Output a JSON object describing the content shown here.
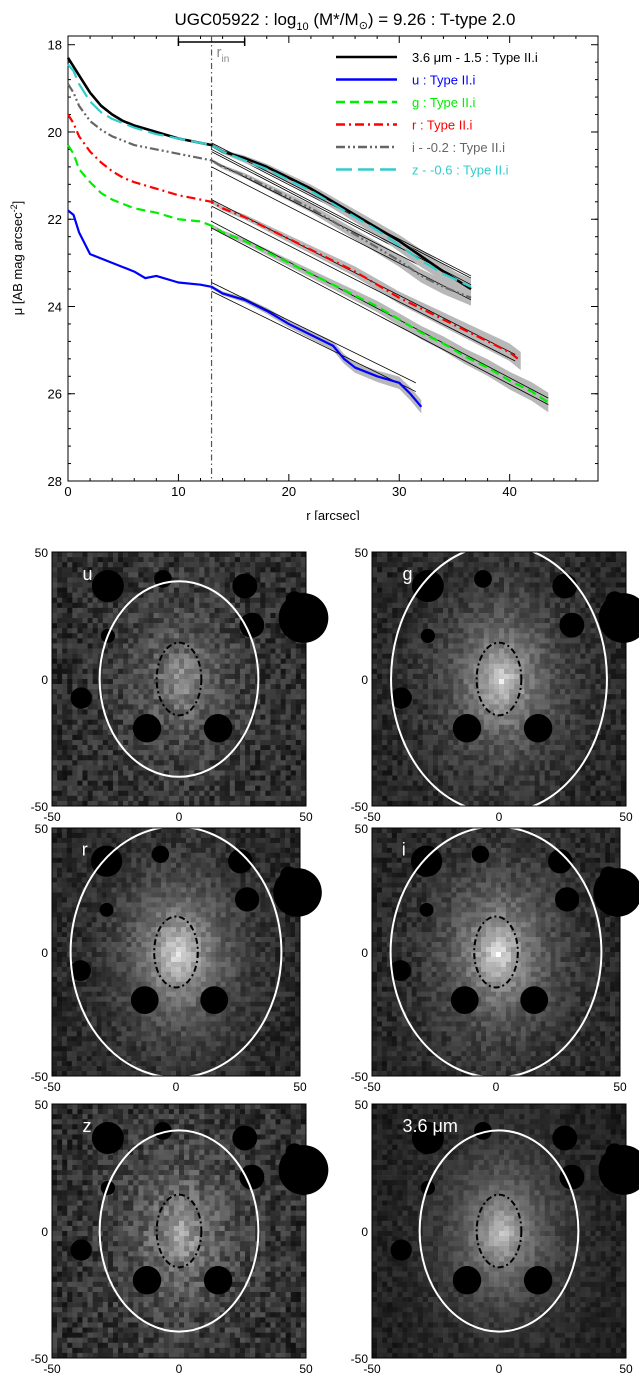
{
  "chart_data": [
    {
      "type": "line",
      "title": "UGC05922 : log₁₀ (M*/M☉) = 9.26 : T-type 2.0",
      "title_parts": [
        "UGC05922 : log",
        "10",
        " (M*/M",
        "⊙",
        ") = 9.26 : T-type 2.0"
      ],
      "xlabel": "r [arcsec]",
      "ylabel": "μ [AB mag arcsec⁻²]",
      "ylabel_parts": [
        "μ [AB mag arcsec",
        "-2",
        "]"
      ],
      "xlim": [
        0,
        48
      ],
      "ylim": [
        28,
        17.8
      ],
      "y_inverted": true,
      "xticks": [
        0,
        10,
        20,
        30,
        40
      ],
      "yticks": [
        18,
        20,
        22,
        24,
        26,
        28
      ],
      "grid": false,
      "legend_position": "top-right",
      "r_in": {
        "label": "r",
        "sub": "in",
        "value": 13.0,
        "error_bar": [
          10.0,
          16.0
        ]
      },
      "series": [
        {
          "name": "3.6 μm - 1.5 : Type II.i",
          "color": "#000000",
          "dash": "solid",
          "x": [
            0,
            1,
            2,
            3,
            4,
            5,
            6,
            8,
            10,
            12,
            13,
            14,
            16,
            18,
            20,
            22,
            24,
            26,
            28,
            30,
            32,
            34,
            36.5
          ],
          "y": [
            18.3,
            18.7,
            19.1,
            19.4,
            19.6,
            19.75,
            19.85,
            20.0,
            20.15,
            20.25,
            20.3,
            20.45,
            20.6,
            20.8,
            21.05,
            21.3,
            21.6,
            21.9,
            22.2,
            22.5,
            22.85,
            23.2,
            23.6
          ],
          "fit": [
            {
              "x": [
                13,
                36.5
              ],
              "y": [
                20.3,
                23.35
              ]
            },
            {
              "x": [
                13,
                36.5
              ],
              "y": [
                20.45,
                23.55
              ]
            }
          ]
        },
        {
          "name": "u : Type II.i",
          "color": "#0000ff",
          "dash": "solid",
          "x": [
            0,
            0.5,
            1,
            2,
            3,
            4,
            5,
            6,
            7,
            8,
            10,
            12,
            13,
            14,
            16,
            18,
            20,
            22,
            24,
            25,
            26,
            28,
            30,
            31,
            32
          ],
          "y": [
            21.8,
            21.9,
            22.3,
            22.8,
            22.9,
            23.0,
            23.1,
            23.2,
            23.35,
            23.3,
            23.45,
            23.5,
            23.55,
            23.7,
            23.85,
            24.1,
            24.4,
            24.65,
            24.9,
            25.2,
            25.4,
            25.6,
            25.75,
            26.0,
            26.3
          ],
          "fit": [
            {
              "x": [
                13,
                31.5
              ],
              "y": [
                23.45,
                25.75
              ]
            },
            {
              "x": [
                13,
                31.5
              ],
              "y": [
                23.65,
                25.95
              ]
            }
          ]
        },
        {
          "name": "g : Type II.i",
          "color": "#00ee00",
          "dash": "dashed",
          "x": [
            0,
            0.5,
            1,
            2,
            3,
            4,
            5,
            6,
            8,
            10,
            12,
            13,
            14,
            16,
            18,
            20,
            22,
            24,
            26,
            28,
            30,
            32,
            34,
            36,
            38,
            40,
            42,
            43.5
          ],
          "y": [
            20.3,
            20.5,
            20.85,
            21.15,
            21.4,
            21.55,
            21.65,
            21.75,
            21.85,
            22.0,
            22.05,
            22.15,
            22.3,
            22.5,
            22.75,
            23.0,
            23.25,
            23.5,
            23.75,
            24.0,
            24.3,
            24.6,
            24.85,
            25.15,
            25.4,
            25.7,
            25.95,
            26.2
          ],
          "fit": [
            {
              "x": [
                13,
                43.5
              ],
              "y": [
                22.05,
                26.1
              ]
            },
            {
              "x": [
                13,
                43.5
              ],
              "y": [
                22.2,
                26.25
              ]
            }
          ]
        },
        {
          "name": "r : Type II.i",
          "color": "#ff0000",
          "dash": "dashdot",
          "x": [
            0,
            0.5,
            1,
            2,
            3,
            4,
            5,
            6,
            8,
            10,
            12,
            13,
            14,
            16,
            18,
            20,
            22,
            24,
            26,
            28,
            30,
            32,
            34,
            36,
            38,
            40,
            41
          ],
          "y": [
            19.6,
            19.8,
            20.1,
            20.45,
            20.7,
            20.9,
            21.05,
            21.15,
            21.3,
            21.45,
            21.55,
            21.6,
            21.75,
            21.95,
            22.2,
            22.45,
            22.7,
            22.95,
            23.2,
            23.5,
            23.8,
            24.05,
            24.3,
            24.55,
            24.8,
            25.05,
            25.25
          ],
          "fit": [
            {
              "x": [
                13,
                40.5
              ],
              "y": [
                21.55,
                25.1
              ]
            },
            {
              "x": [
                13,
                40.5
              ],
              "y": [
                21.7,
                25.25
              ]
            }
          ]
        },
        {
          "name": "i - -0.2 : Type II.i",
          "color": "#666666",
          "dash": "dashdotdot",
          "x": [
            0,
            0.5,
            1,
            2,
            3,
            4,
            5,
            6,
            8,
            10,
            12,
            13,
            14,
            16,
            18,
            20,
            22,
            24,
            26,
            28,
            30,
            32,
            34,
            36.5
          ],
          "y": [
            18.9,
            19.1,
            19.4,
            19.75,
            19.95,
            20.1,
            20.2,
            20.3,
            20.4,
            20.5,
            20.6,
            20.65,
            20.8,
            21.0,
            21.25,
            21.5,
            21.75,
            22.05,
            22.35,
            22.65,
            22.95,
            23.3,
            23.55,
            23.8
          ],
          "fit": [
            {
              "x": [
                13,
                36.5
              ],
              "y": [
                20.65,
                23.65
              ]
            },
            {
              "x": [
                13,
                36.5
              ],
              "y": [
                20.8,
                23.85
              ]
            }
          ]
        },
        {
          "name": "z - -0.6 : Type II.i",
          "color": "#33cccc",
          "dash": "longdash",
          "x": [
            0,
            0.5,
            1,
            2,
            3,
            4,
            5,
            6,
            8,
            10,
            12,
            13,
            14,
            16,
            18,
            20,
            22,
            24,
            26,
            28,
            30,
            32,
            34,
            36.5
          ],
          "y": [
            18.45,
            18.6,
            18.9,
            19.3,
            19.55,
            19.7,
            19.8,
            19.9,
            20.05,
            20.15,
            20.25,
            20.3,
            20.45,
            20.65,
            20.85,
            21.1,
            21.35,
            21.65,
            21.95,
            22.25,
            22.6,
            22.95,
            23.25,
            23.55
          ],
          "fit": [
            {
              "x": [
                13,
                36.5
              ],
              "y": [
                20.25,
                23.3
              ]
            },
            {
              "x": [
                13,
                36.5
              ],
              "y": [
                20.4,
                23.5
              ]
            }
          ]
        }
      ]
    },
    {
      "type": "heatmap",
      "panel_label": "u",
      "xlim": [
        -50,
        50
      ],
      "ylim": [
        -50,
        50
      ],
      "xticks": [
        -50,
        0,
        50
      ],
      "yticks": [
        -50,
        0,
        50
      ],
      "noise_level": 0.42,
      "galaxy_brightness": 0.45,
      "outer_ellipse": {
        "a": 35,
        "b": 25,
        "color": "#ffffff"
      },
      "inner_ellipse": {
        "a": 13,
        "b": 8,
        "color": "#000000"
      }
    },
    {
      "type": "heatmap",
      "panel_label": "g",
      "xlim": [
        -50,
        50
      ],
      "ylim": [
        -50,
        50
      ],
      "xticks": [
        -50,
        0,
        50
      ],
      "yticks": [
        -50,
        0,
        50
      ],
      "noise_level": 0.3,
      "galaxy_brightness": 0.75,
      "outer_ellipse": {
        "a": 48,
        "b": 34,
        "color": "#ffffff"
      },
      "inner_ellipse": {
        "a": 13,
        "b": 8,
        "color": "#000000"
      }
    },
    {
      "type": "heatmap",
      "panel_label": "r",
      "xlim": [
        -50,
        50
      ],
      "ylim": [
        -50,
        50
      ],
      "xticks": [
        -50,
        0,
        50
      ],
      "yticks": [
        -50,
        0,
        50
      ],
      "noise_level": 0.3,
      "galaxy_brightness": 0.8,
      "outer_ellipse": {
        "a": 46,
        "b": 34,
        "color": "#ffffff"
      },
      "inner_ellipse": {
        "a": 13,
        "b": 8,
        "color": "#000000"
      }
    },
    {
      "type": "heatmap",
      "panel_label": "i",
      "xlim": [
        -50,
        50
      ],
      "ylim": [
        -50,
        50
      ],
      "xticks": [
        -50,
        0,
        50
      ],
      "yticks": [
        -50,
        0,
        50
      ],
      "noise_level": 0.3,
      "galaxy_brightness": 0.8,
      "outer_ellipse": {
        "a": 46,
        "b": 34,
        "color": "#ffffff"
      },
      "inner_ellipse": {
        "a": 13,
        "b": 8,
        "color": "#000000"
      }
    },
    {
      "type": "heatmap",
      "panel_label": "z",
      "xlim": [
        -50,
        50
      ],
      "ylim": [
        -50,
        50
      ],
      "xticks": [
        -50,
        0,
        50
      ],
      "yticks": [
        -50,
        0,
        50
      ],
      "noise_level": 0.45,
      "galaxy_brightness": 0.55,
      "outer_ellipse": {
        "a": 36,
        "b": 25,
        "color": "#ffffff"
      },
      "inner_ellipse": {
        "a": 13,
        "b": 8,
        "color": "#000000"
      }
    },
    {
      "type": "heatmap",
      "panel_label": "3.6 μm",
      "xlim": [
        -50,
        50
      ],
      "ylim": [
        -50,
        50
      ],
      "xticks": [
        -50,
        0,
        50
      ],
      "yticks": [
        -50,
        0,
        50
      ],
      "noise_level": 0.22,
      "galaxy_brightness": 0.7,
      "outer_ellipse": {
        "a": 36,
        "b": 25,
        "color": "#ffffff"
      },
      "inner_ellipse": {
        "a": 13,
        "b": 8,
        "color": "#000000"
      }
    }
  ]
}
